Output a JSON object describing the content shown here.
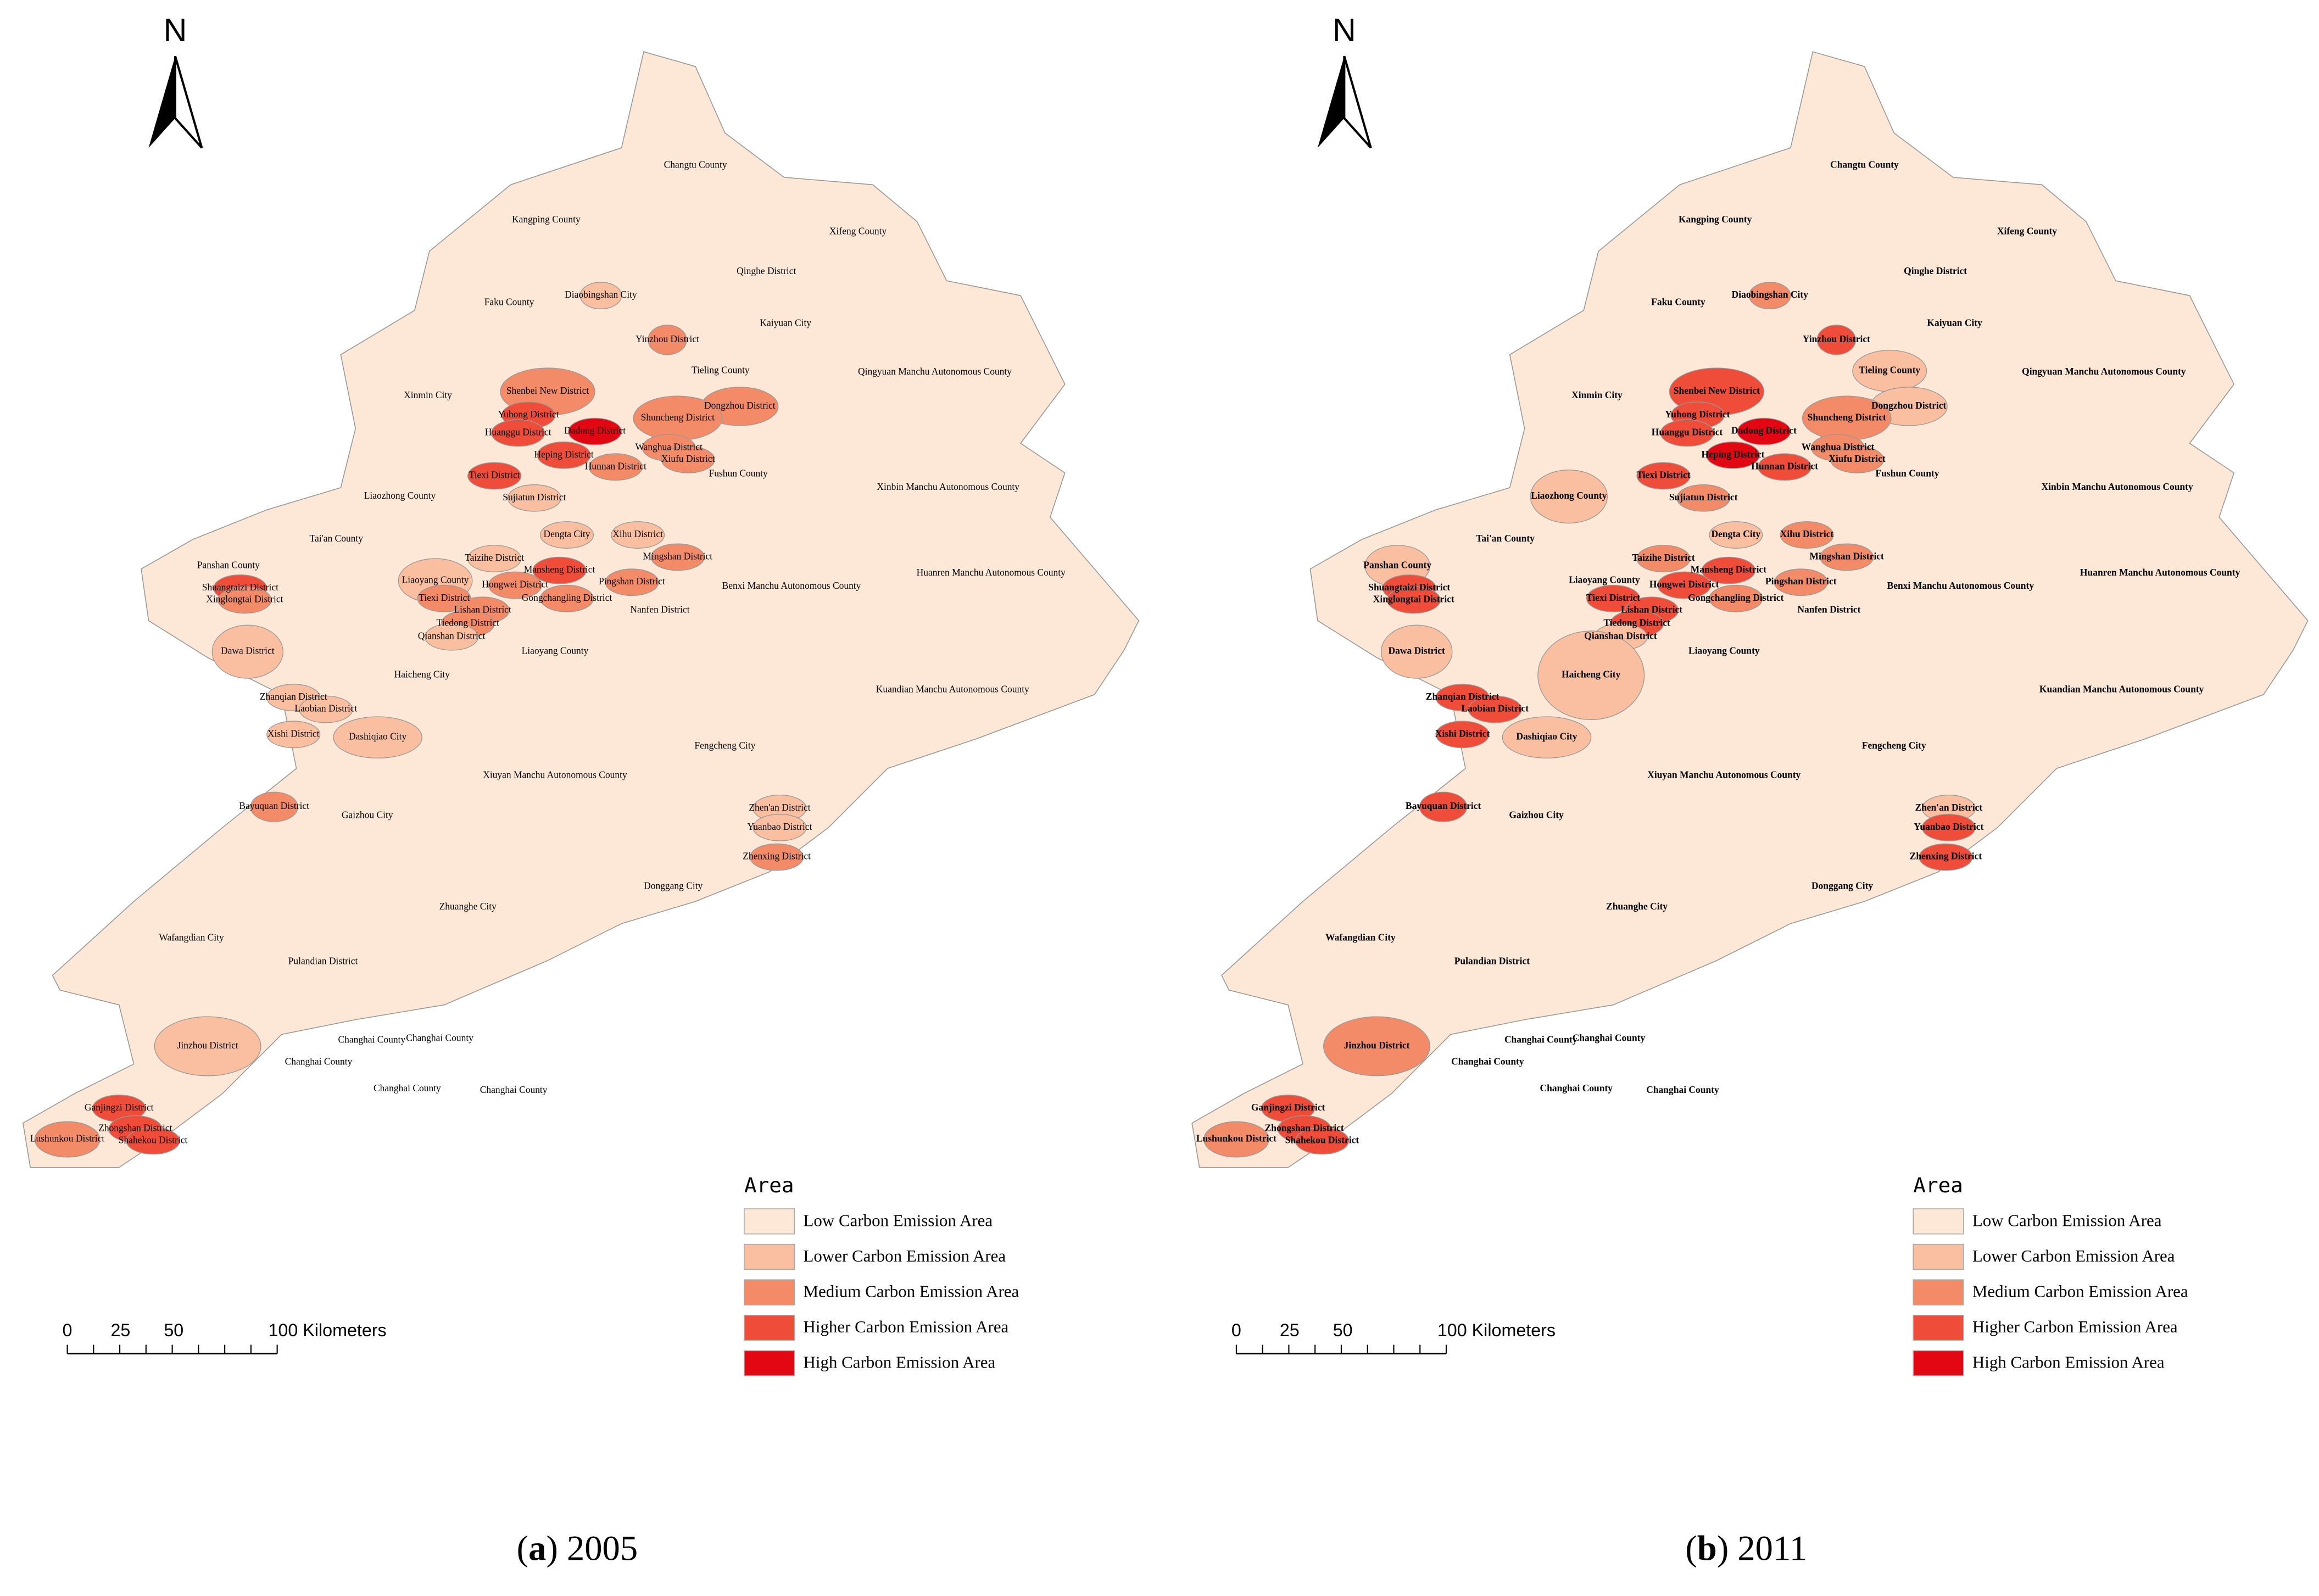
{
  "north": "N",
  "legend": {
    "title": "Area",
    "items": [
      "Low Carbon Emission Area",
      "Lower Carbon Emission Area",
      "Medium Carbon Emission Area",
      "Higher Carbon Emission Area",
      "High Carbon Emission Area"
    ],
    "colors": [
      "#fde8d7",
      "#f9bfa0",
      "#f38b69",
      "#ef4c3a",
      "#e30613"
    ]
  },
  "scale_bar": {
    "labels": [
      "0",
      "25",
      "50",
      "100 Kilometers"
    ]
  },
  "place_names": [
    "Changtu County",
    "Kangping County",
    "Xifeng County",
    "Qinghe District",
    "Faku County",
    "Diaobingshan City",
    "Kaiyuan City",
    "Yinzhou District",
    "Tieling County",
    "Qingyuan Manchu Autonomous County",
    "Xinmin City",
    "Shenbei New District",
    "Dongzhou District",
    "Yuhong District",
    "Huanggu District",
    "Dadong District",
    "Shuncheng District",
    "Wanghua District",
    "Heping District",
    "Hunnan District",
    "Xiufu District",
    "Tiexi District",
    "Fushun County",
    "Xinbin Manchu Autonomous County",
    "Liaozhong County",
    "Sujiatun District",
    "Tai'an County",
    "Dengta City",
    "Xihu District",
    "Panshan County",
    "Taizihe District",
    "Mingshan District",
    "Mansheng District",
    "Liaoyang County",
    "Huanren Manchu Autonomous County",
    "Hongwei District",
    "Pingshan District",
    "Benxi Manchu Autonomous County",
    "Shuangtaizi District",
    "Xinglongtai District",
    "Tiexi District",
    "Gongchangling District",
    "Lishan District",
    "Nanfen District",
    "Tiedong District",
    "Qianshan District",
    "Dawa District",
    "Liaoyang County",
    "Haicheng City",
    "Kuandian Manchu Autonomous County",
    "Zhanqian District",
    "Laobian District",
    "Xishi District",
    "Dashiqiao City",
    "Fengcheng City",
    "Xiuyan Manchu Autonomous County",
    "Bayuquan District",
    "Gaizhou City",
    "Zhen'an District",
    "Yuanbao District",
    "Zhenxing District",
    "Zhuanghe City",
    "Donggang City",
    "Wafangdian City",
    "Pulandian District",
    "Jinzhou District",
    "Changhai County",
    "Changhai County",
    "Changhai County",
    "Changhai County",
    "Changhai County",
    "Ganjingzi District",
    "Zhongshan District",
    "Lushunkou District",
    "Shahekou District"
  ],
  "panels": [
    {
      "caption": [
        "(",
        "a",
        ") 2005"
      ],
      "bold_labels": false,
      "levels": [
        0,
        0,
        0,
        0,
        0,
        1,
        0,
        2,
        0,
        0,
        0,
        2,
        2,
        3,
        3,
        4,
        2,
        2,
        3,
        2,
        2,
        3,
        0,
        0,
        0,
        1,
        0,
        1,
        1,
        0,
        1,
        2,
        3,
        1,
        0,
        2,
        2,
        0,
        3,
        2,
        2,
        2,
        2,
        0,
        2,
        1,
        1,
        0,
        0,
        0,
        1,
        1,
        1,
        1,
        0,
        0,
        2,
        0,
        1,
        1,
        2,
        0,
        0,
        0,
        0,
        1,
        0,
        0,
        0,
        0,
        0,
        3,
        3,
        2,
        3
      ]
    },
    {
      "caption": [
        "(",
        "b",
        ") 2011"
      ],
      "bold_labels": true,
      "levels": [
        0,
        0,
        0,
        0,
        0,
        2,
        0,
        3,
        1,
        0,
        0,
        3,
        1,
        3,
        3,
        4,
        2,
        2,
        4,
        3,
        2,
        3,
        0,
        0,
        1,
        2,
        0,
        1,
        2,
        1,
        2,
        2,
        3,
        0,
        0,
        3,
        2,
        0,
        3,
        3,
        3,
        2,
        3,
        0,
        3,
        1,
        1,
        0,
        1,
        0,
        3,
        3,
        3,
        1,
        0,
        0,
        3,
        0,
        1,
        3,
        3,
        0,
        0,
        0,
        0,
        2,
        0,
        0,
        0,
        0,
        0,
        3,
        3,
        2,
        3
      ]
    }
  ]
}
